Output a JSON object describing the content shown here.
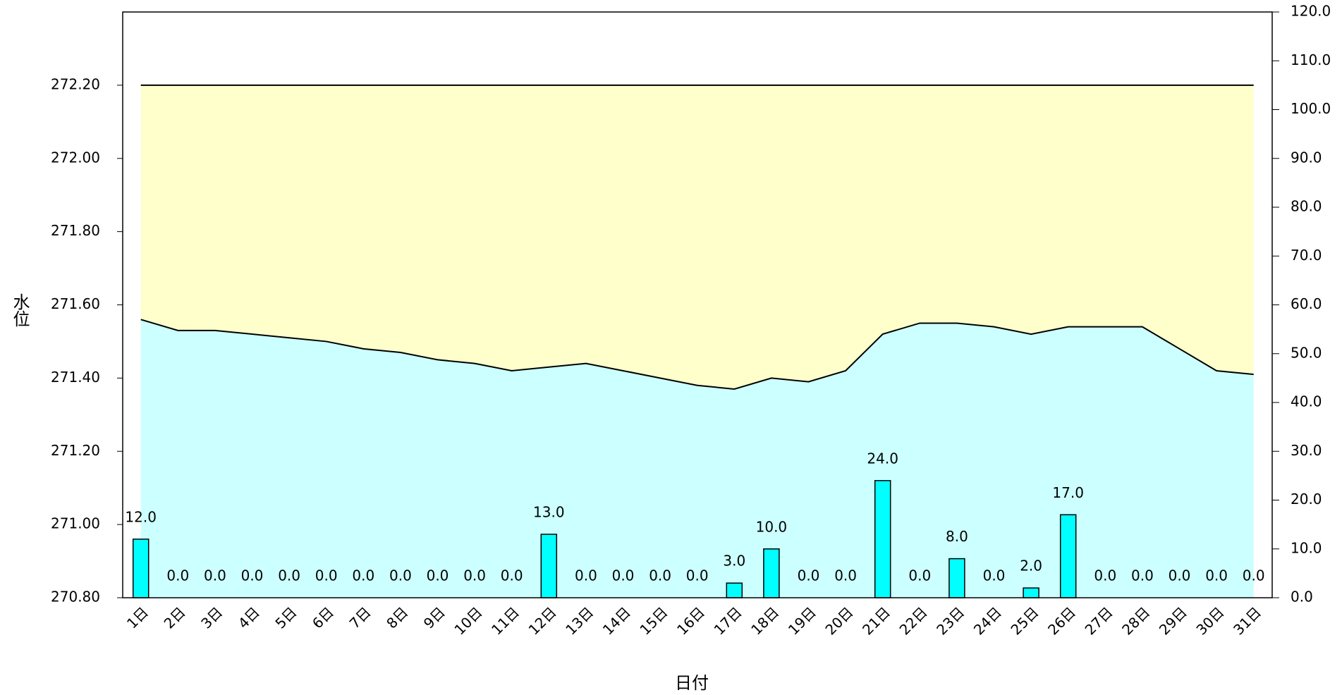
{
  "chart_data": {
    "type": "bar-line",
    "x_label": "日付",
    "y_label": "水位",
    "categories": [
      "1日",
      "2日",
      "3日",
      "4日",
      "5日",
      "6日",
      "7日",
      "8日",
      "9日",
      "10日",
      "11日",
      "12日",
      "13日",
      "14日",
      "15日",
      "16日",
      "17日",
      "18日",
      "19日",
      "20日",
      "21日",
      "22日",
      "23日",
      "24日",
      "25日",
      "26日",
      "27日",
      "28日",
      "29日",
      "30日",
      "31日"
    ],
    "series": [
      {
        "type": "area",
        "color": "#ffffcc",
        "axis": "y",
        "values": [
          272.2,
          272.2,
          272.2,
          272.2,
          272.2,
          272.2,
          272.2,
          272.2,
          272.2,
          272.2,
          272.2,
          272.2,
          272.2,
          272.2,
          272.2,
          272.2,
          272.2,
          272.2,
          272.2,
          272.2,
          272.2,
          272.2,
          272.2,
          272.2,
          272.2,
          272.2,
          272.2,
          272.2,
          272.2,
          272.2,
          272.2
        ]
      },
      {
        "type": "area",
        "color": "#ccffff",
        "axis": "y",
        "values": [
          271.56,
          271.53,
          271.53,
          271.52,
          271.51,
          271.5,
          271.48,
          271.47,
          271.45,
          271.44,
          271.42,
          271.43,
          271.44,
          271.42,
          271.4,
          271.38,
          271.37,
          271.4,
          271.39,
          271.42,
          271.52,
          271.55,
          271.55,
          271.54,
          271.52,
          271.54,
          271.54,
          271.54,
          271.48,
          271.42,
          271.41
        ]
      },
      {
        "type": "bar",
        "color": "#00ffff",
        "axis": "y2",
        "values": [
          12,
          0,
          0,
          0,
          0,
          0,
          0,
          0,
          0,
          0,
          0,
          13,
          0,
          0,
          0,
          0,
          3,
          10,
          0,
          0,
          24,
          0,
          8,
          0,
          2,
          17,
          0,
          0,
          0,
          0,
          0
        ],
        "value_labels": [
          "12.0",
          "0.0",
          "0.0",
          "0.0",
          "0.0",
          "0.0",
          "0.0",
          "0.0",
          "0.0",
          "0.0",
          "0.0",
          "13.0",
          "0.0",
          "0.0",
          "0.0",
          "0.0",
          "3.0",
          "10.0",
          "0.0",
          "0.0",
          "24.0",
          "0.0",
          "8.0",
          "0.0",
          "2.0",
          "17.0",
          "0.0",
          "0.0",
          "0.0",
          "0.0",
          "0.0"
        ]
      }
    ],
    "ylim": [
      270.8,
      272.4
    ],
    "yticks": [
      {
        "value": 270.8,
        "label": "270.80"
      },
      {
        "value": 271,
        "label": "271.00"
      },
      {
        "value": 271.2,
        "label": "271.20"
      },
      {
        "value": 271.4,
        "label": "271.40"
      },
      {
        "value": 271.6,
        "label": "271.60"
      },
      {
        "value": 271.8,
        "label": "271.80"
      },
      {
        "value": 272,
        "label": "272.00"
      },
      {
        "value": 272.2,
        "label": "272.20"
      }
    ],
    "y2lim": [
      0,
      120
    ],
    "y2ticks": [
      {
        "value": 0,
        "label": "0.0"
      },
      {
        "value": 10,
        "label": "10.0"
      },
      {
        "value": 20,
        "label": "20.0"
      },
      {
        "value": 30,
        "label": "30.0"
      },
      {
        "value": 40,
        "label": "40.0"
      },
      {
        "value": 50,
        "label": "50.0"
      },
      {
        "value": 60,
        "label": "60.0"
      },
      {
        "value": 70,
        "label": "70.0"
      },
      {
        "value": 80,
        "label": "80.0"
      },
      {
        "value": 90,
        "label": "90.0"
      },
      {
        "value": 100,
        "label": "100.0"
      },
      {
        "value": 110,
        "label": "110.0"
      },
      {
        "value": 120,
        "label": "120.0"
      }
    ]
  }
}
